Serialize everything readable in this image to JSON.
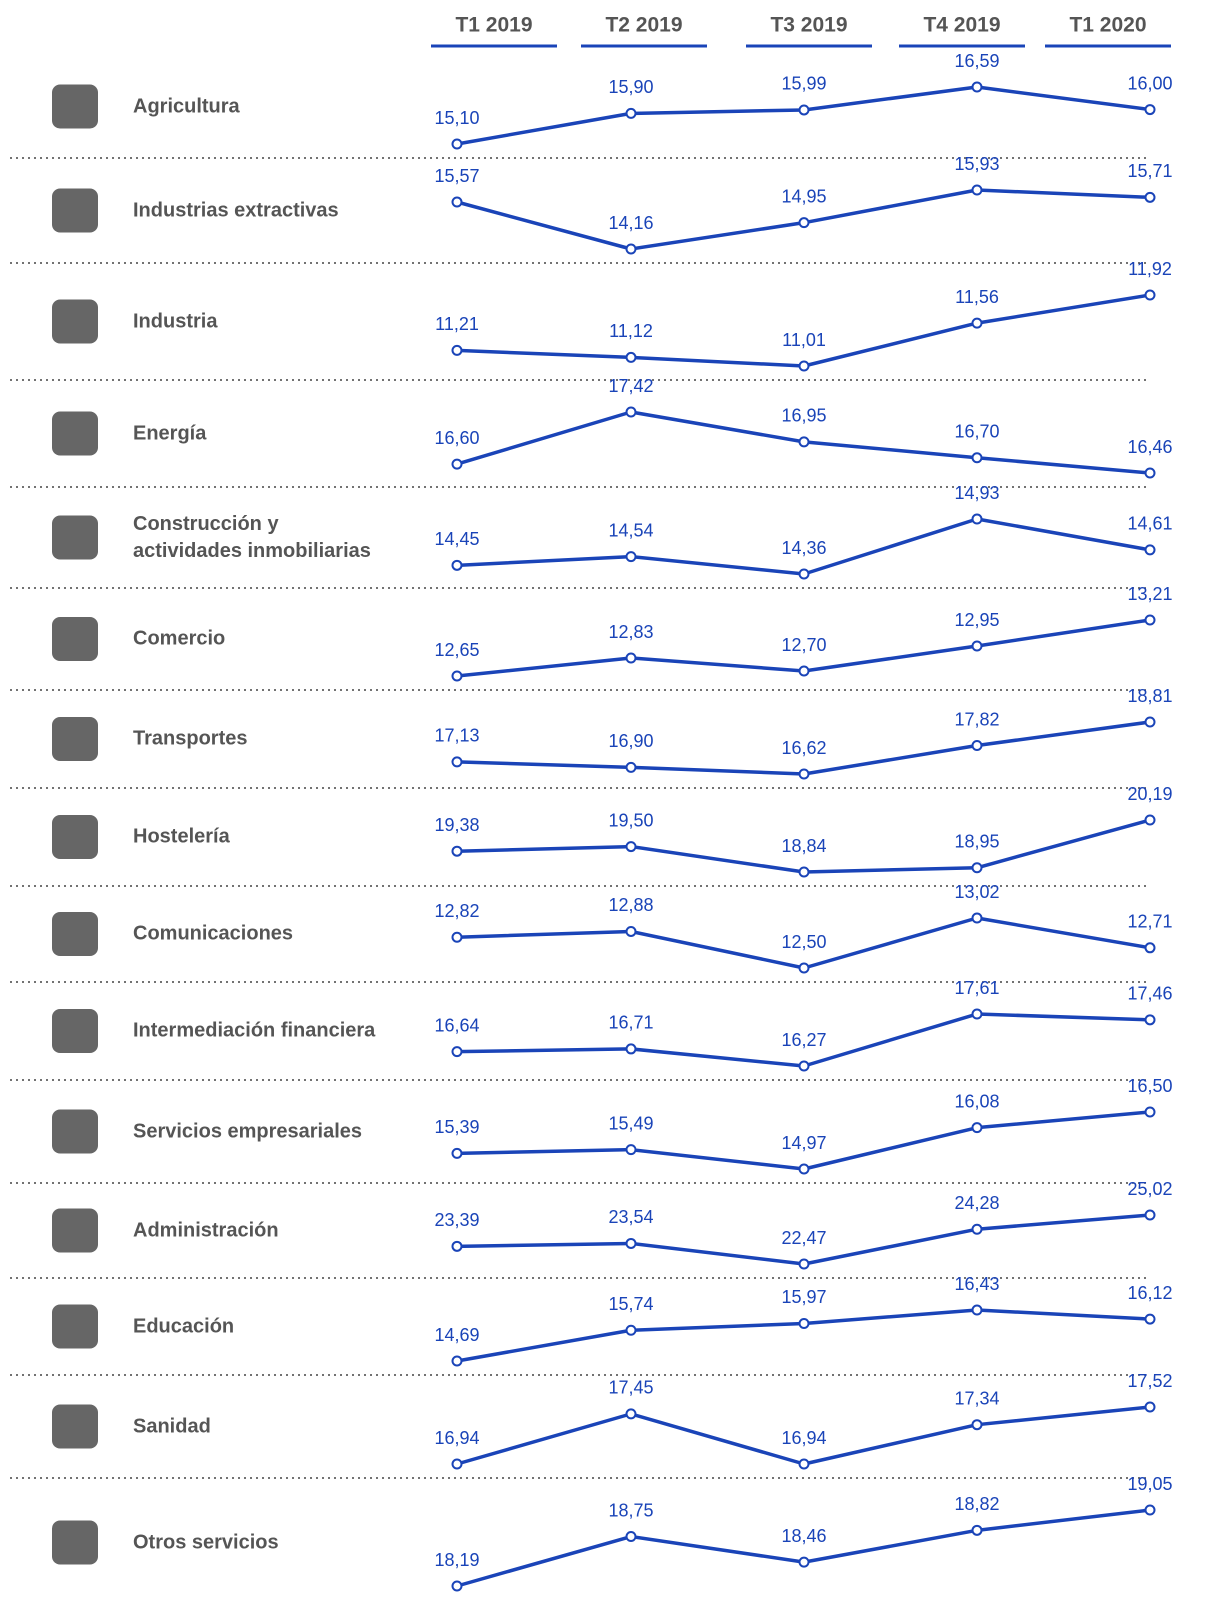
{
  "chart_data": {
    "type": "line",
    "color": "#1a44b8",
    "categories": [
      "T1 2019",
      "T2 2019",
      "T3 2019",
      "T4 2019",
      "T1 2020"
    ],
    "series": [
      {
        "name": "Agricultura",
        "values": [
          15.1,
          15.9,
          15.99,
          16.59,
          16.0
        ],
        "value_labels": [
          "15,10",
          "15,90",
          "15,99",
          "16,59",
          "16,00"
        ]
      },
      {
        "name": "Industrias extractivas",
        "values": [
          15.57,
          14.16,
          14.95,
          15.93,
          15.71
        ],
        "value_labels": [
          "15,57",
          "14,16",
          "14,95",
          "15,93",
          "15,71"
        ]
      },
      {
        "name": "Industria",
        "values": [
          11.21,
          11.12,
          11.01,
          11.56,
          11.92
        ],
        "value_labels": [
          "11,21",
          "11,12",
          "11,01",
          "11,56",
          "11,92"
        ]
      },
      {
        "name": "Energía",
        "values": [
          16.6,
          17.42,
          16.95,
          16.7,
          16.46
        ],
        "value_labels": [
          "16,60",
          "17,42",
          "16,95",
          "16,70",
          "16,46"
        ]
      },
      {
        "name": "Construcción y actividades inmobiliarias",
        "values": [
          14.45,
          14.54,
          14.36,
          14.93,
          14.61
        ],
        "value_labels": [
          "14,45",
          "14,54",
          "14,36",
          "14,93",
          "14,61"
        ]
      },
      {
        "name": "Comercio",
        "values": [
          12.65,
          12.83,
          12.7,
          12.95,
          13.21
        ],
        "value_labels": [
          "12,65",
          "12,83",
          "12,70",
          "12,95",
          "13,21"
        ]
      },
      {
        "name": "Transportes",
        "values": [
          17.13,
          16.9,
          16.62,
          17.82,
          18.81
        ],
        "value_labels": [
          "17,13",
          "16,90",
          "16,62",
          "17,82",
          "18,81"
        ]
      },
      {
        "name": "Hostelería",
        "values": [
          19.38,
          19.5,
          18.84,
          18.95,
          20.19
        ],
        "value_labels": [
          "19,38",
          "19,50",
          "18,84",
          "18,95",
          "20,19"
        ]
      },
      {
        "name": "Comunicaciones",
        "values": [
          12.82,
          12.88,
          12.5,
          13.02,
          12.71
        ],
        "value_labels": [
          "12,82",
          "12,88",
          "12,50",
          "13,02",
          "12,71"
        ]
      },
      {
        "name": "Intermediación financiera",
        "values": [
          16.64,
          16.71,
          16.27,
          17.61,
          17.46
        ],
        "value_labels": [
          "16,64",
          "16,71",
          "16,27",
          "17,61",
          "17,46"
        ]
      },
      {
        "name": "Servicios empresariales",
        "values": [
          15.39,
          15.49,
          14.97,
          16.08,
          16.5
        ],
        "value_labels": [
          "15,39",
          "15,49",
          "14,97",
          "16,08",
          "16,50"
        ]
      },
      {
        "name": "Administración",
        "values": [
          23.39,
          23.54,
          22.47,
          24.28,
          25.02
        ],
        "value_labels": [
          "23,39",
          "23,54",
          "22,47",
          "24,28",
          "25,02"
        ]
      },
      {
        "name": "Educación",
        "values": [
          14.69,
          15.74,
          15.97,
          16.43,
          16.12
        ],
        "value_labels": [
          "14,69",
          "15,74",
          "15,97",
          "16,43",
          "16,12"
        ]
      },
      {
        "name": "Sanidad",
        "values": [
          16.94,
          17.45,
          16.94,
          17.34,
          17.52
        ],
        "value_labels": [
          "16,94",
          "17,45",
          "16,94",
          "17,34",
          "17,52"
        ]
      },
      {
        "name": "Otros servicios",
        "values": [
          18.19,
          18.75,
          18.46,
          18.82,
          19.05
        ],
        "value_labels": [
          "18,19",
          "18,75",
          "18,46",
          "18,82",
          "19,05"
        ]
      }
    ]
  }
}
